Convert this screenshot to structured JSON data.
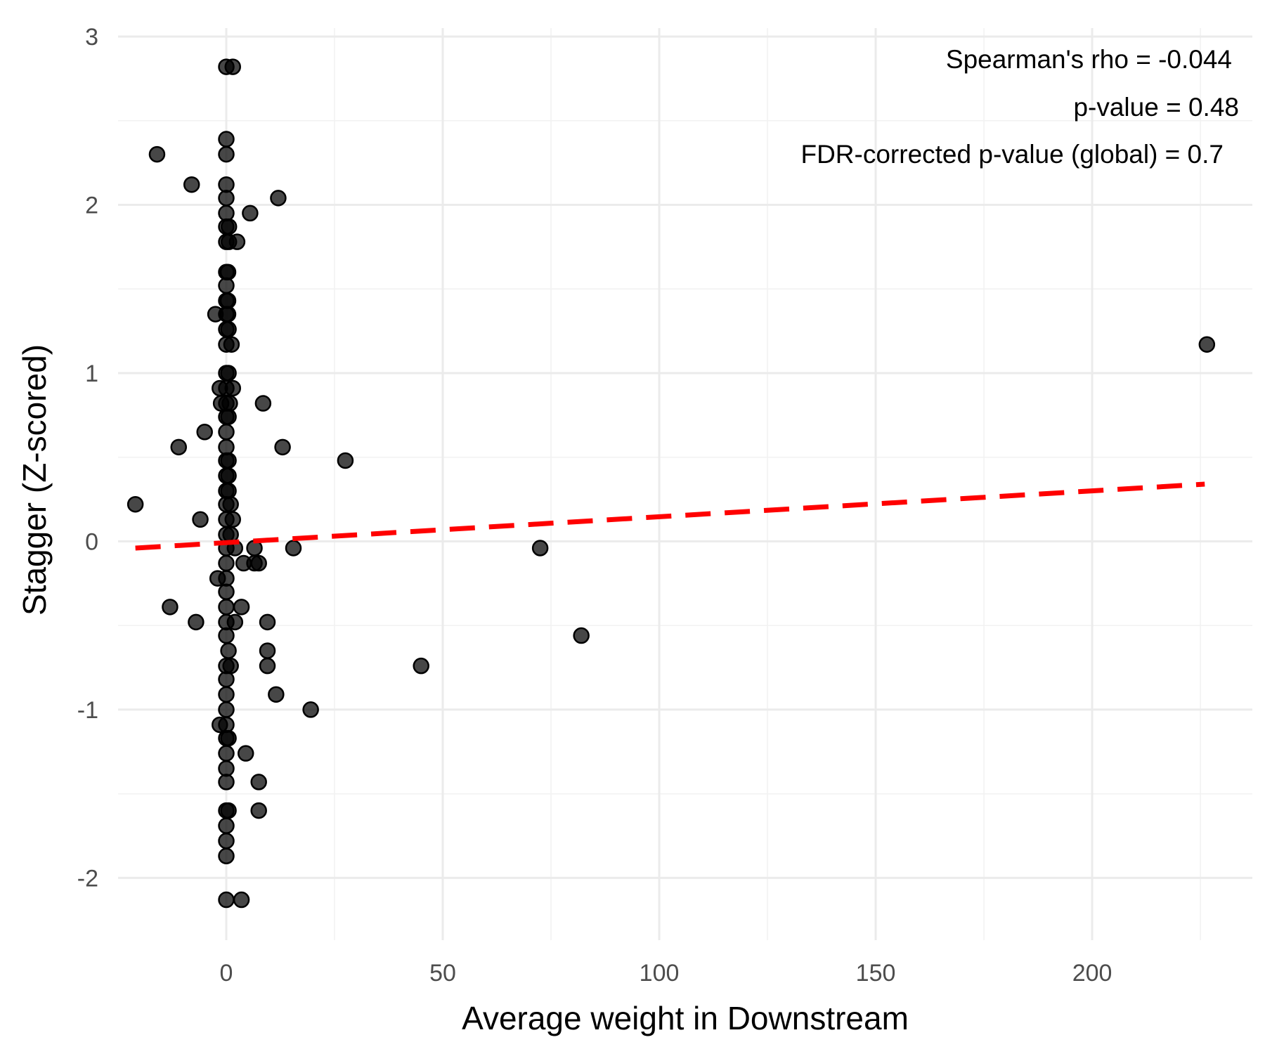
{
  "chart_data": {
    "type": "scatter",
    "title": "",
    "xlabel": "Average weight in Downstream",
    "ylabel": "Stagger (Z-scored)",
    "xlim": [
      -25,
      237
    ],
    "ylim": [
      -2.37,
      3.05
    ],
    "x_ticks": [
      0,
      50,
      100,
      150,
      200
    ],
    "x_tick_labels": [
      "0",
      "50",
      "100",
      "150",
      "200"
    ],
    "y_ticks": [
      -2,
      -1,
      0,
      1,
      2,
      3
    ],
    "y_tick_labels": [
      "-2",
      "-1",
      "0",
      "1",
      "2",
      "3"
    ],
    "grid": true,
    "annotations": [
      "Spearman's rho = -0.044",
      "p-value = 0.48",
      "FDR-corrected p-value (global) = 0.7"
    ],
    "annotation_position": "top-right",
    "trend_line": {
      "style": "dashed",
      "color": "#ff0000",
      "x": [
        -21,
        226
      ],
      "y": [
        -0.04,
        0.34
      ]
    },
    "series": [
      {
        "points": [
          [
            0,
            2.82
          ],
          [
            1.5,
            2.82
          ],
          [
            -16,
            2.3
          ],
          [
            0,
            2.39
          ],
          [
            0,
            2.3
          ],
          [
            -8,
            2.12
          ],
          [
            0,
            2.12
          ],
          [
            0,
            2.04
          ],
          [
            12,
            2.04
          ],
          [
            0,
            1.95
          ],
          [
            5.5,
            1.95
          ],
          [
            0,
            1.87
          ],
          [
            0.6,
            1.87
          ],
          [
            0,
            1.78
          ],
          [
            0.6,
            1.78
          ],
          [
            2.5,
            1.78
          ],
          [
            0,
            1.6
          ],
          [
            0.4,
            1.6
          ],
          [
            0,
            1.52
          ],
          [
            0,
            1.43
          ],
          [
            0.4,
            1.43
          ],
          [
            -2.5,
            1.35
          ],
          [
            0,
            1.35
          ],
          [
            0.4,
            1.35
          ],
          [
            0,
            1.26
          ],
          [
            0.5,
            1.26
          ],
          [
            0,
            1.17
          ],
          [
            1.2,
            1.17
          ],
          [
            0,
            1.0
          ],
          [
            0.5,
            1.0
          ],
          [
            -1.5,
            0.91
          ],
          [
            0,
            0.91
          ],
          [
            1.5,
            0.91
          ],
          [
            -1.2,
            0.82
          ],
          [
            0,
            0.82
          ],
          [
            0.8,
            0.82
          ],
          [
            8.5,
            0.82
          ],
          [
            0,
            0.74
          ],
          [
            0.5,
            0.74
          ],
          [
            -5,
            0.65
          ],
          [
            0,
            0.65
          ],
          [
            -11,
            0.56
          ],
          [
            0,
            0.56
          ],
          [
            13,
            0.56
          ],
          [
            0,
            0.48
          ],
          [
            0.5,
            0.48
          ],
          [
            27.5,
            0.48
          ],
          [
            0,
            0.39
          ],
          [
            0.5,
            0.39
          ],
          [
            0,
            0.3
          ],
          [
            0.5,
            0.3
          ],
          [
            -21,
            0.22
          ],
          [
            0,
            0.22
          ],
          [
            1,
            0.22
          ],
          [
            -6,
            0.13
          ],
          [
            0,
            0.13
          ],
          [
            1.5,
            0.13
          ],
          [
            0,
            0.04
          ],
          [
            1,
            0.04
          ],
          [
            0,
            -0.04
          ],
          [
            2,
            -0.04
          ],
          [
            6.5,
            -0.04
          ],
          [
            15.5,
            -0.04
          ],
          [
            72.5,
            -0.04
          ],
          [
            0,
            -0.13
          ],
          [
            4,
            -0.13
          ],
          [
            6.5,
            -0.13
          ],
          [
            7.5,
            -0.13
          ],
          [
            -2,
            -0.22
          ],
          [
            0,
            -0.22
          ],
          [
            0,
            -0.3
          ],
          [
            -13,
            -0.39
          ],
          [
            0,
            -0.39
          ],
          [
            3.5,
            -0.39
          ],
          [
            -7,
            -0.48
          ],
          [
            0,
            -0.48
          ],
          [
            2,
            -0.48
          ],
          [
            9.5,
            -0.48
          ],
          [
            0,
            -0.56
          ],
          [
            82,
            -0.56
          ],
          [
            0.5,
            -0.65
          ],
          [
            9.5,
            -0.65
          ],
          [
            0,
            -0.74
          ],
          [
            1,
            -0.74
          ],
          [
            9.5,
            -0.74
          ],
          [
            45,
            -0.74
          ],
          [
            0,
            -0.82
          ],
          [
            0,
            -0.91
          ],
          [
            11.5,
            -0.91
          ],
          [
            0,
            -1.0
          ],
          [
            19.5,
            -1.0
          ],
          [
            -1.5,
            -1.09
          ],
          [
            0,
            -1.09
          ],
          [
            0,
            -1.17
          ],
          [
            0.5,
            -1.17
          ],
          [
            0,
            -1.26
          ],
          [
            4.5,
            -1.26
          ],
          [
            0,
            -1.35
          ],
          [
            0,
            -1.43
          ],
          [
            7.5,
            -1.43
          ],
          [
            0,
            -1.6
          ],
          [
            0.5,
            -1.6
          ],
          [
            7.5,
            -1.6
          ],
          [
            0,
            -1.69
          ],
          [
            0,
            -1.78
          ],
          [
            0,
            -1.87
          ],
          [
            0,
            -2.13
          ],
          [
            3.5,
            -2.13
          ],
          [
            226.5,
            1.17
          ]
        ]
      }
    ]
  }
}
